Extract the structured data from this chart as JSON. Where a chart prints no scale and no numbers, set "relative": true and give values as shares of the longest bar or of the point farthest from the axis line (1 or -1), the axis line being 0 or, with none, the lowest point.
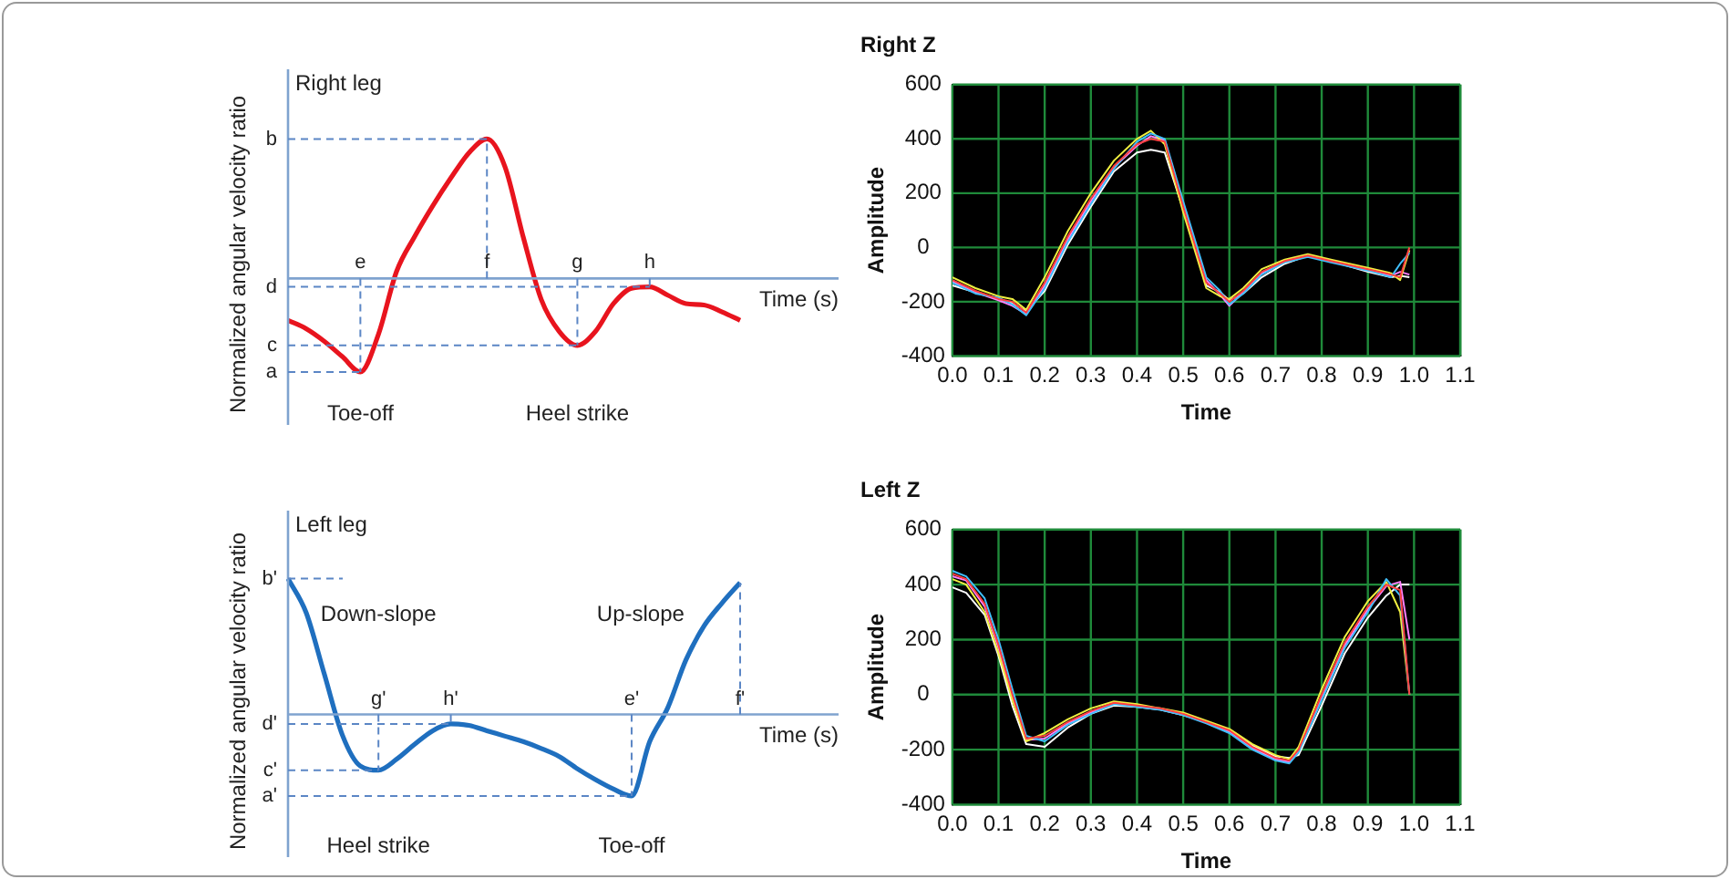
{
  "chart_data": [
    {
      "type": "line",
      "title": "Right leg",
      "xlabel": "Time (s)",
      "ylabel": "Normalized angular velocity ratio",
      "relative": true,
      "categories": [
        null,
        null,
        null,
        null,
        null,
        null,
        null,
        null,
        null,
        null,
        null,
        null,
        null,
        null,
        null,
        null,
        null,
        null,
        null,
        null,
        null,
        null,
        null,
        null,
        null,
        null
      ],
      "series": [
        {
          "color": "#e8141e",
          "values": [
            -0.3,
            -0.36,
            -0.45,
            -0.56,
            -0.67,
            -0.4,
            0.05,
            0.3,
            0.52,
            0.72,
            0.9,
            1.0,
            0.8,
            0.3,
            -0.15,
            -0.38,
            -0.48,
            -0.38,
            -0.18,
            -0.07,
            -0.06,
            -0.12,
            -0.18,
            -0.19,
            -0.24,
            -0.3
          ]
        }
      ],
      "ref_lines": [
        {
          "axis": "y",
          "value": 0,
          "color": "#7fa3cf"
        }
      ],
      "annotations": [
        "a",
        "b",
        "c",
        "d",
        {
          "text": "e",
          "y": -0.67
        },
        {
          "text": "f",
          "y": 1.0
        },
        {
          "text": "g",
          "y": -0.48
        },
        {
          "text": "h",
          "y": -0.06
        },
        {
          "text": "Toe-off",
          "y": -0.67
        },
        {
          "text": "Heel strike",
          "y": -0.48
        }
      ]
    },
    {
      "type": "line",
      "title": "Right Z",
      "xlabel": "Time",
      "ylabel": "Amplitude",
      "grid": true,
      "x": [
        0,
        0.05,
        0.1,
        0.13,
        0.16,
        0.2,
        0.25,
        0.3,
        0.35,
        0.4,
        0.43,
        0.46,
        0.5,
        0.55,
        0.58,
        0.6,
        0.63,
        0.67,
        0.72,
        0.77,
        0.82,
        0.9,
        0.95,
        0.97,
        0.99
      ],
      "xlim": [
        0,
        1.1
      ],
      "xticks": [
        {
          "value": 0,
          "label": "0.0"
        },
        {
          "value": 0.1,
          "label": "0.1"
        },
        {
          "value": 0.2,
          "label": "0.2"
        },
        {
          "value": 0.3,
          "label": "0.3"
        },
        {
          "value": 0.4,
          "label": "0.4"
        },
        {
          "value": 0.5,
          "label": "0.5"
        },
        {
          "value": 0.6,
          "label": "0.6"
        },
        {
          "value": 0.7,
          "label": "0.7"
        },
        {
          "value": 0.8,
          "label": "0.8"
        },
        {
          "value": 0.9,
          "label": "0.9"
        },
        {
          "value": 1.0,
          "label": "1.0"
        },
        {
          "value": 1.1,
          "label": "1.1"
        }
      ],
      "ylim": [
        -400,
        600
      ],
      "yticks": [
        -400,
        -200,
        0,
        200,
        400,
        600
      ],
      "series": [
        {
          "color": "#ff4040",
          "values": [
            -120,
            -160,
            -190,
            -200,
            -240,
            -130,
            40,
            180,
            300,
            380,
            400,
            390,
            150,
            -130,
            -170,
            -200,
            -160,
            -90,
            -50,
            -30,
            -50,
            -80,
            -100,
            -110,
            0
          ]
        },
        {
          "color": "#40c0ff",
          "values": [
            -130,
            -170,
            -185,
            -210,
            -250,
            -150,
            20,
            160,
            290,
            390,
            420,
            400,
            170,
            -110,
            -160,
            -210,
            -170,
            -100,
            -55,
            -35,
            -55,
            -85,
            -110,
            -60,
            -20
          ]
        },
        {
          "color": "#f0f040",
          "values": [
            -110,
            -150,
            -180,
            -190,
            -230,
            -110,
            60,
            200,
            320,
            400,
            430,
            380,
            130,
            -150,
            -180,
            -190,
            -150,
            -80,
            -45,
            -25,
            -45,
            -75,
            -95,
            -120,
            -10
          ]
        },
        {
          "color": "#ff80ff",
          "values": [
            -125,
            -165,
            -195,
            -215,
            -245,
            -140,
            30,
            170,
            295,
            375,
            410,
            395,
            160,
            -120,
            -175,
            -215,
            -165,
            -95,
            -50,
            -30,
            -50,
            -85,
            -105,
            -90,
            -100
          ]
        },
        {
          "color": "#ffffff",
          "values": [
            -140,
            -165,
            -190,
            -205,
            -235,
            -160,
            10,
            150,
            280,
            350,
            360,
            350,
            140,
            -140,
            -165,
            -195,
            -170,
            -110,
            -60,
            -30,
            -50,
            -90,
            -110,
            -105,
            -110
          ]
        }
      ]
    },
    {
      "type": "line",
      "title": "Left leg",
      "xlabel": "Time (s)",
      "ylabel": "Normalized angular velocity ratio",
      "relative": true,
      "categories": [
        null,
        null,
        null,
        null,
        null,
        null,
        null,
        null,
        null,
        null,
        null,
        null,
        null,
        null,
        null,
        null,
        null,
        null,
        null,
        null,
        null,
        null,
        null,
        null,
        null,
        null
      ],
      "series": [
        {
          "color": "#1f6fbf",
          "values": [
            1.0,
            0.75,
            0.3,
            -0.15,
            -0.38,
            -0.41,
            -0.33,
            -0.22,
            -0.12,
            -0.07,
            -0.08,
            -0.12,
            -0.16,
            -0.2,
            -0.25,
            -0.31,
            -0.4,
            -0.48,
            -0.55,
            -0.6,
            -0.2,
            0.05,
            0.4,
            0.65,
            0.82,
            0.97
          ]
        }
      ],
      "ref_lines": [
        {
          "axis": "y",
          "value": 0,
          "color": "#7fa3cf"
        }
      ],
      "annotations": [
        "a'",
        "b'",
        "c'",
        "d'",
        {
          "text": "e'",
          "y": -0.6
        },
        "f'",
        {
          "text": "g'",
          "y": -0.41
        },
        {
          "text": "h'",
          "y": -0.07
        },
        {
          "text": "Heel strike",
          "y": -0.41
        },
        {
          "text": "Toe-off",
          "y": -0.6
        },
        "Down-slope",
        "Up-slope"
      ]
    },
    {
      "type": "line",
      "title": "Left Z",
      "xlabel": "Time",
      "ylabel": "Amplitude",
      "grid": true,
      "x": [
        0,
        0.03,
        0.07,
        0.1,
        0.13,
        0.16,
        0.2,
        0.25,
        0.3,
        0.35,
        0.4,
        0.45,
        0.5,
        0.55,
        0.6,
        0.65,
        0.7,
        0.73,
        0.75,
        0.8,
        0.85,
        0.9,
        0.94,
        0.97,
        0.99
      ],
      "xlim": [
        0,
        1.1
      ],
      "xticks": [
        {
          "value": 0,
          "label": "0.0"
        },
        {
          "value": 0.1,
          "label": "0.1"
        },
        {
          "value": 0.2,
          "label": "0.2"
        },
        {
          "value": 0.3,
          "label": "0.3"
        },
        {
          "value": 0.4,
          "label": "0.4"
        },
        {
          "value": 0.5,
          "label": "0.5"
        },
        {
          "value": 0.6,
          "label": "0.6"
        },
        {
          "value": 0.7,
          "label": "0.7"
        },
        {
          "value": 0.8,
          "label": "0.8"
        },
        {
          "value": 0.9,
          "label": "0.9"
        },
        {
          "value": 1.0,
          "label": "1.0"
        },
        {
          "value": 1.1,
          "label": "1.1"
        }
      ],
      "ylim": [
        -400,
        600
      ],
      "yticks": [
        -400,
        -200,
        0,
        200,
        400,
        600
      ],
      "series": [
        {
          "color": "#ff4040",
          "values": [
            440,
            420,
            330,
            180,
            0,
            -160,
            -150,
            -100,
            -60,
            -30,
            -40,
            -50,
            -70,
            -100,
            -130,
            -190,
            -230,
            -240,
            -200,
            0,
            190,
            320,
            400,
            380,
            0
          ]
        },
        {
          "color": "#40c0ff",
          "values": [
            450,
            430,
            350,
            200,
            20,
            -150,
            -170,
            -110,
            -70,
            -35,
            -45,
            -55,
            -75,
            -105,
            -140,
            -200,
            -240,
            -250,
            -210,
            -20,
            170,
            300,
            420,
            360,
            0
          ]
        },
        {
          "color": "#f0f040",
          "values": [
            420,
            400,
            300,
            150,
            -20,
            -170,
            -140,
            -90,
            -50,
            -25,
            -35,
            -50,
            -65,
            -95,
            -125,
            -180,
            -220,
            -235,
            -190,
            20,
            210,
            340,
            410,
            300,
            0
          ]
        },
        {
          "color": "#ff80ff",
          "values": [
            430,
            415,
            320,
            170,
            -10,
            -165,
            -160,
            -105,
            -65,
            -30,
            -40,
            -52,
            -72,
            -102,
            -135,
            -195,
            -235,
            -245,
            -205,
            -10,
            180,
            310,
            395,
            410,
            200
          ]
        },
        {
          "color": "#ffffff",
          "values": [
            390,
            370,
            290,
            140,
            -40,
            -180,
            -190,
            -120,
            -70,
            -40,
            -45,
            -55,
            -75,
            -100,
            -130,
            -185,
            -225,
            -230,
            -220,
            -40,
            150,
            280,
            360,
            400,
            400
          ]
        }
      ]
    }
  ]
}
